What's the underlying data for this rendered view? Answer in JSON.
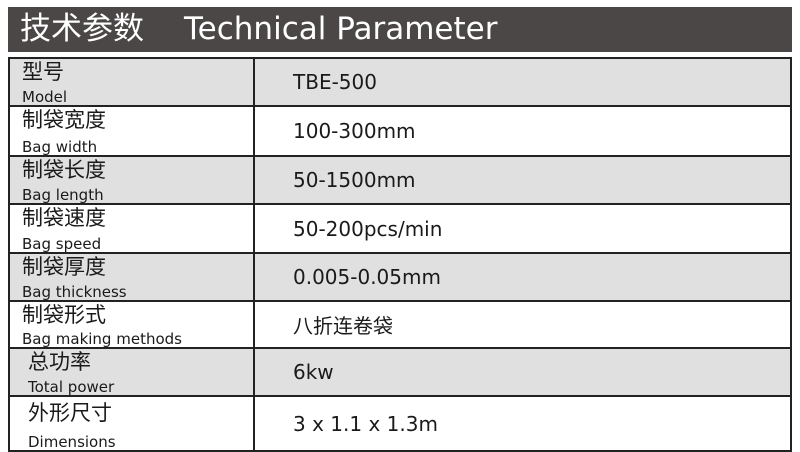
{
  "header": {
    "title_cn": "技术参数",
    "title_en": "Technical Parameter"
  },
  "rows": [
    {
      "label_cn": "型号",
      "label_en": "Model",
      "value": "TBE-500"
    },
    {
      "label_cn": "制袋宽度",
      "label_en": "Bag width",
      "value": "100-300mm"
    },
    {
      "label_cn": "制袋长度",
      "label_en": "Bag length",
      "value": "50-1500mm"
    },
    {
      "label_cn": "制袋速度",
      "label_en": "Bag speed",
      "value": "50-200pcs/min"
    },
    {
      "label_cn": "制袋厚度",
      "label_en": "Bag thickness",
      "value": "0.005-0.05mm"
    },
    {
      "label_cn": "制袋形式",
      "label_en": "Bag making methods",
      "value": "八折连卷袋"
    },
    {
      "label_cn": "总功率",
      "label_en": "Total power",
      "value": "6kw"
    },
    {
      "label_cn": "外形尺寸",
      "label_en": "Dimensions",
      "value": "3 x 1.1 x 1.3m"
    }
  ],
  "colors": {
    "header_bg": "#4b4747",
    "alt_row_bg": "#e0e0e0"
  }
}
